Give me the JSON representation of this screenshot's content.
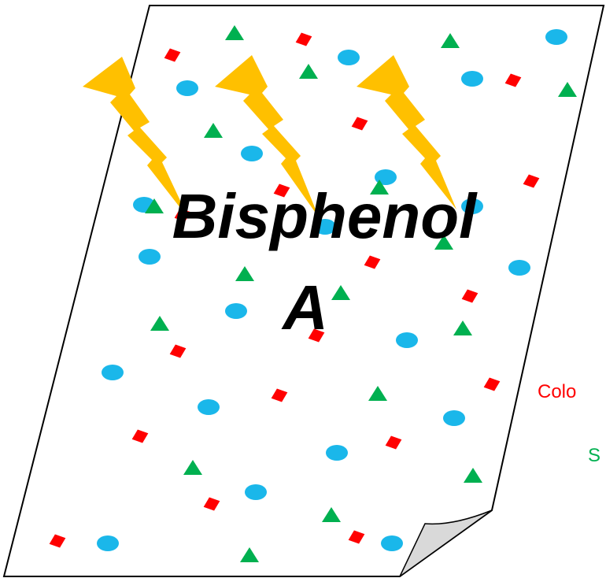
{
  "title": {
    "line1": "Bisphenol",
    "line2": "A"
  },
  "side_labels": {
    "color_label": "Colo",
    "shape_label": "S"
  },
  "colors": {
    "paper": "#ffffff",
    "outline": "#000000",
    "curl": "#d9d9d9",
    "bolt": "#ffc000",
    "dot": "#1ab7ea",
    "diamond": "#ff0000",
    "triangle": "#00b050",
    "color_label": "#ff0000",
    "shape_label": "#00b050"
  },
  "icons": {
    "paper": "curled-paper-sheet-icon",
    "bolt": "lightning-bolt-icon",
    "dot": "cyan-oval-particle-icon",
    "diamond": "red-diamond-particle-icon",
    "triangle": "green-triangle-particle-icon"
  }
}
